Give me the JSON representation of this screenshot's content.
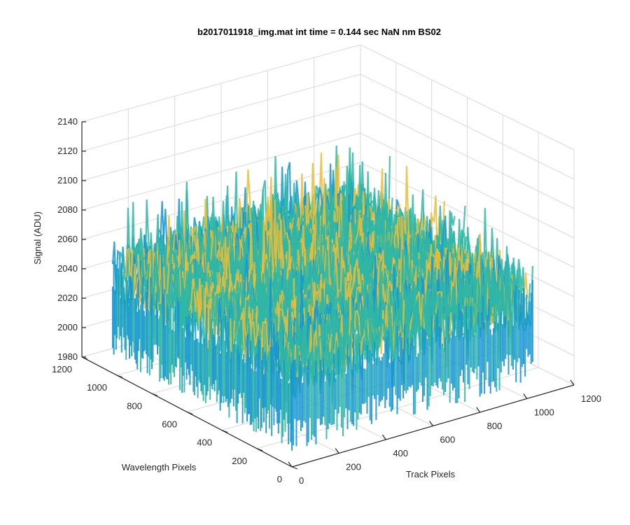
{
  "chart_data": {
    "type": "surface",
    "title": "b2017011918_img.mat int time = 0.144 sec  NaN nm BS02",
    "xlabel": "Track Pixels",
    "ylabel": "Wavelength Pixels",
    "zlabel": "Signal (ADU)",
    "xlim": [
      0,
      1200
    ],
    "ylim": [
      0,
      1200
    ],
    "zlim": [
      1980,
      2140
    ],
    "x_ticks": [
      "0",
      "200",
      "400",
      "600",
      "800",
      "1000",
      "1200"
    ],
    "y_ticks": [
      "0",
      "200",
      "400",
      "600",
      "800",
      "1000",
      "1200"
    ],
    "z_ticks": [
      "1980",
      "2000",
      "2020",
      "2040",
      "2060",
      "2080",
      "2100",
      "2120",
      "2140"
    ],
    "grid": true,
    "colormap": "parula",
    "colors": {
      "low": "#1696d2",
      "mid": "#2fb6a6",
      "high": "#e8bd3a"
    },
    "surface_summary": {
      "data_extent_x": [
        0,
        1024
      ],
      "data_extent_y": [
        0,
        1024
      ],
      "mean_level": 2045,
      "noise_amplitude": 22,
      "peak_level": 2135,
      "min_level": 1990
    }
  }
}
